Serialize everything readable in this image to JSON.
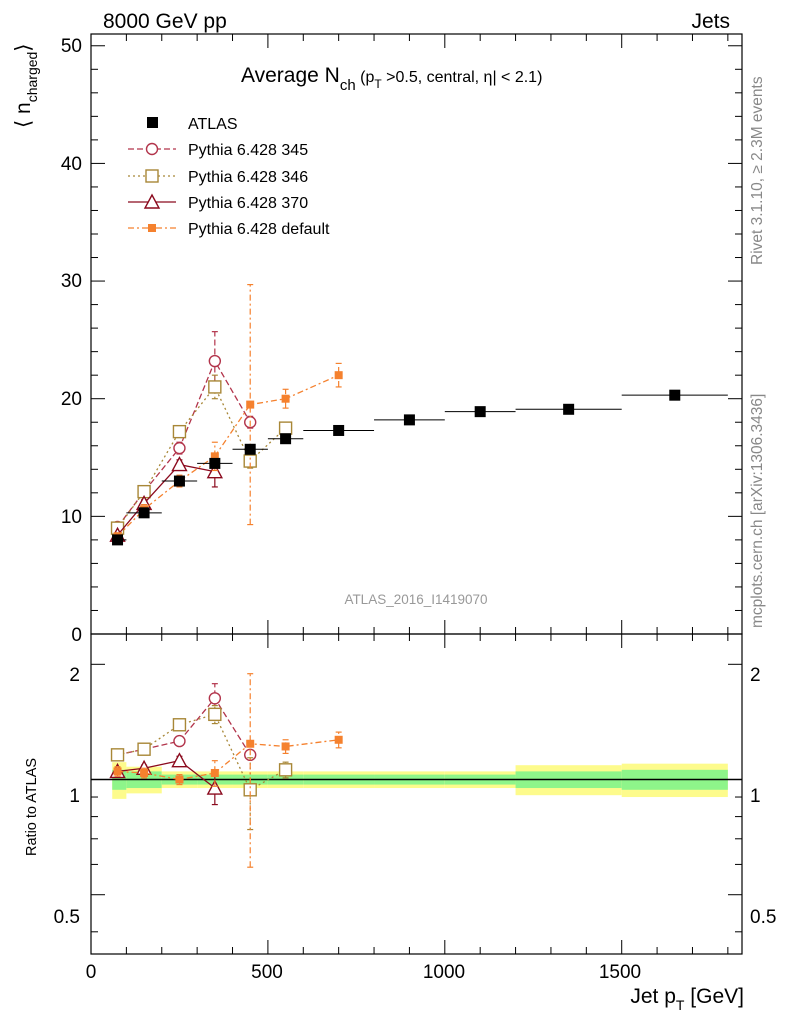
{
  "header": {
    "left": "8000 GeV pp",
    "right": "Jets"
  },
  "side_texts": {
    "rivet": "Rivet 3.1.10, ≥ 2.3M events",
    "mcplots": "mcplots.cern.ch [arXiv:1306.3436]"
  },
  "main_title": {
    "prefix": "Average N",
    "sub": "ch",
    "cond1": " (p",
    "cond_sub": "T",
    "cond2": " >0.5, central, η| < 2.1)"
  },
  "watermark": "ATLAS_2016_I1419070",
  "axes": {
    "top_ylabel_main": "⟨ n",
    "top_ylabel_sub": "charged",
    "top_ylabel_end": "⟩",
    "bottom_ylabel": "Ratio to ATLAS",
    "xlabel_main": "Jet p",
    "xlabel_sub": "T",
    "xlabel_unit": " [GeV]",
    "top_yticks": [
      "0",
      "10",
      "20",
      "30",
      "40",
      "50"
    ],
    "bottom_yticks_left": [
      "0.5",
      "1",
      "2"
    ],
    "bottom_yticks_right": [
      "0.5",
      "1",
      "2"
    ],
    "xticks": [
      "0",
      "500",
      "1000",
      "1500"
    ]
  },
  "legend": {
    "atlas": "ATLAS",
    "p345": "Pythia 6.428 345",
    "p346": "Pythia 6.428 346",
    "p370": "Pythia 6.428 370",
    "pdef": "Pythia 6.428 default"
  },
  "colors": {
    "atlas": "#000000",
    "p345": "#b2344b",
    "p346": "#a88737",
    "p370": "#8b0a1e",
    "pdef": "#f5812e",
    "band_inner": "#8ef58a",
    "band_outer": "#fdfb8c"
  },
  "chart_data": {
    "type": "scatter",
    "x_range": [
      0,
      1840
    ],
    "ylim_top": [
      0,
      51
    ],
    "ylim_ratio": [
      0.35,
      2.4
    ],
    "ratio_scale": "log",
    "atlas": {
      "x": [
        75,
        150,
        250,
        350,
        450,
        550,
        700,
        900,
        1100,
        1350,
        1650
      ],
      "xerr_low": [
        15,
        50,
        50,
        50,
        50,
        50,
        100,
        100,
        100,
        150,
        150
      ],
      "xerr_high": [
        25,
        50,
        50,
        50,
        50,
        50,
        100,
        100,
        100,
        150,
        150
      ],
      "y": [
        8.0,
        10.3,
        13.0,
        14.5,
        15.7,
        16.6,
        17.3,
        18.2,
        18.9,
        19.1,
        20.3
      ]
    },
    "ratio_band": {
      "x_lo": [
        60,
        100,
        200,
        300,
        400,
        500,
        600,
        800,
        1000,
        1200,
        1500
      ],
      "x_hi": [
        100,
        200,
        300,
        400,
        500,
        600,
        800,
        1000,
        1200,
        1500,
        1800
      ],
      "inner": [
        0.06,
        0.05,
        0.03,
        0.03,
        0.03,
        0.03,
        0.03,
        0.03,
        0.03,
        0.05,
        0.06
      ],
      "outer": [
        0.11,
        0.08,
        0.05,
        0.05,
        0.05,
        0.05,
        0.05,
        0.05,
        0.05,
        0.09,
        0.1
      ]
    },
    "series": [
      {
        "name": "Pythia 6.428 345",
        "key": "p345",
        "dash": "6,3",
        "marker": "circle",
        "x": [
          75,
          150,
          250,
          350,
          450
        ],
        "y": [
          9.1,
          12.1,
          15.8,
          23.2,
          18.0
        ],
        "yerr": [
          0.2,
          0.3,
          0.5,
          2.5,
          0.5
        ],
        "ratio": [
          1.16,
          1.2,
          1.26,
          1.63,
          1.16
        ],
        "ratio_err": [
          0.02,
          0.02,
          0.03,
          0.15,
          0.03
        ]
      },
      {
        "name": "Pythia 6.428 346",
        "key": "p346",
        "dash": "2,3",
        "marker": "square-open",
        "x": [
          75,
          150,
          250,
          350,
          450,
          550
        ],
        "y": [
          9.0,
          12.1,
          17.2,
          21.0,
          14.7,
          17.5
        ],
        "yerr": [
          0.2,
          0.3,
          0.4,
          1.0,
          0.6,
          0.5
        ],
        "ratio": [
          1.16,
          1.2,
          1.39,
          1.48,
          0.94,
          1.06
        ],
        "ratio_err": [
          0.02,
          0.02,
          0.03,
          0.08,
          0.2,
          0.05
        ]
      },
      {
        "name": "Pythia 6.428 370",
        "key": "p370",
        "dash": "",
        "marker": "triangle",
        "x": [
          75,
          150,
          250,
          350
        ],
        "y": [
          8.4,
          11.1,
          14.4,
          13.8
        ],
        "yerr": [
          0.2,
          0.3,
          0.4,
          1.3
        ],
        "ratio": [
          1.05,
          1.07,
          1.12,
          0.95
        ],
        "ratio_err": [
          0.02,
          0.02,
          0.03,
          0.09
        ]
      },
      {
        "name": "Pythia 6.428 default",
        "key": "pdef",
        "dash": "6,3,2,3",
        "marker": "square-small",
        "x": [
          75,
          150,
          250,
          350,
          450,
          550,
          700
        ],
        "y": [
          8.3,
          10.6,
          13.0,
          15.1,
          19.5,
          20.0,
          22.0
        ],
        "yerr": [
          0.3,
          0.4,
          0.5,
          1.2,
          10.2,
          0.8,
          1.0
        ],
        "ratio": [
          1.05,
          1.04,
          1.0,
          1.04,
          1.24,
          1.22,
          1.27
        ],
        "ratio_err": [
          0.03,
          0.03,
          0.03,
          0.08,
          0.65,
          0.05,
          0.06
        ]
      }
    ]
  }
}
